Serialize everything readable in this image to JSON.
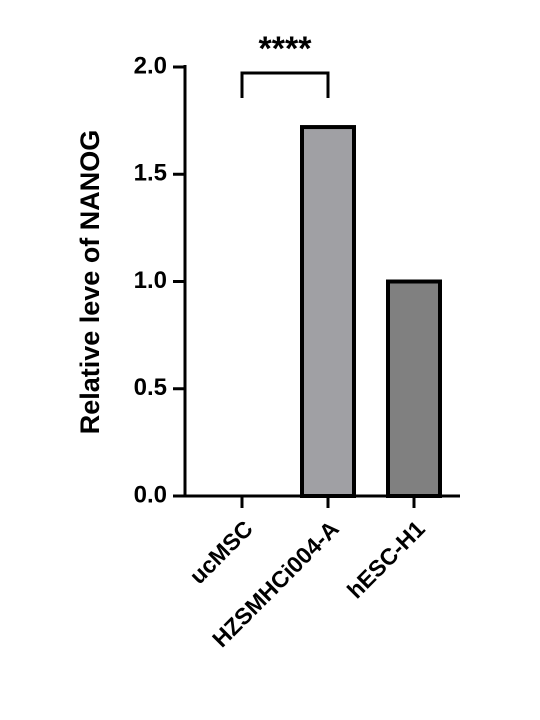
{
  "chart_data": {
    "type": "bar",
    "y_label": "Relative leve of NANOG",
    "categories": [
      "ucMSC",
      "HZSMHCi004-A",
      "hESC-H1"
    ],
    "values": [
      0,
      1.72,
      1.0
    ],
    "colors": [
      "#ffffff",
      "#a0a0a4",
      "#808080"
    ],
    "ylim": [
      0,
      2.0
    ],
    "yticks": [
      {
        "value": 0,
        "label": "0.0"
      },
      0.5,
      {
        "value": 1,
        "label": "1.0"
      },
      1.5,
      {
        "value": 2,
        "label": "2.0"
      }
    ],
    "annotation": "****"
  }
}
